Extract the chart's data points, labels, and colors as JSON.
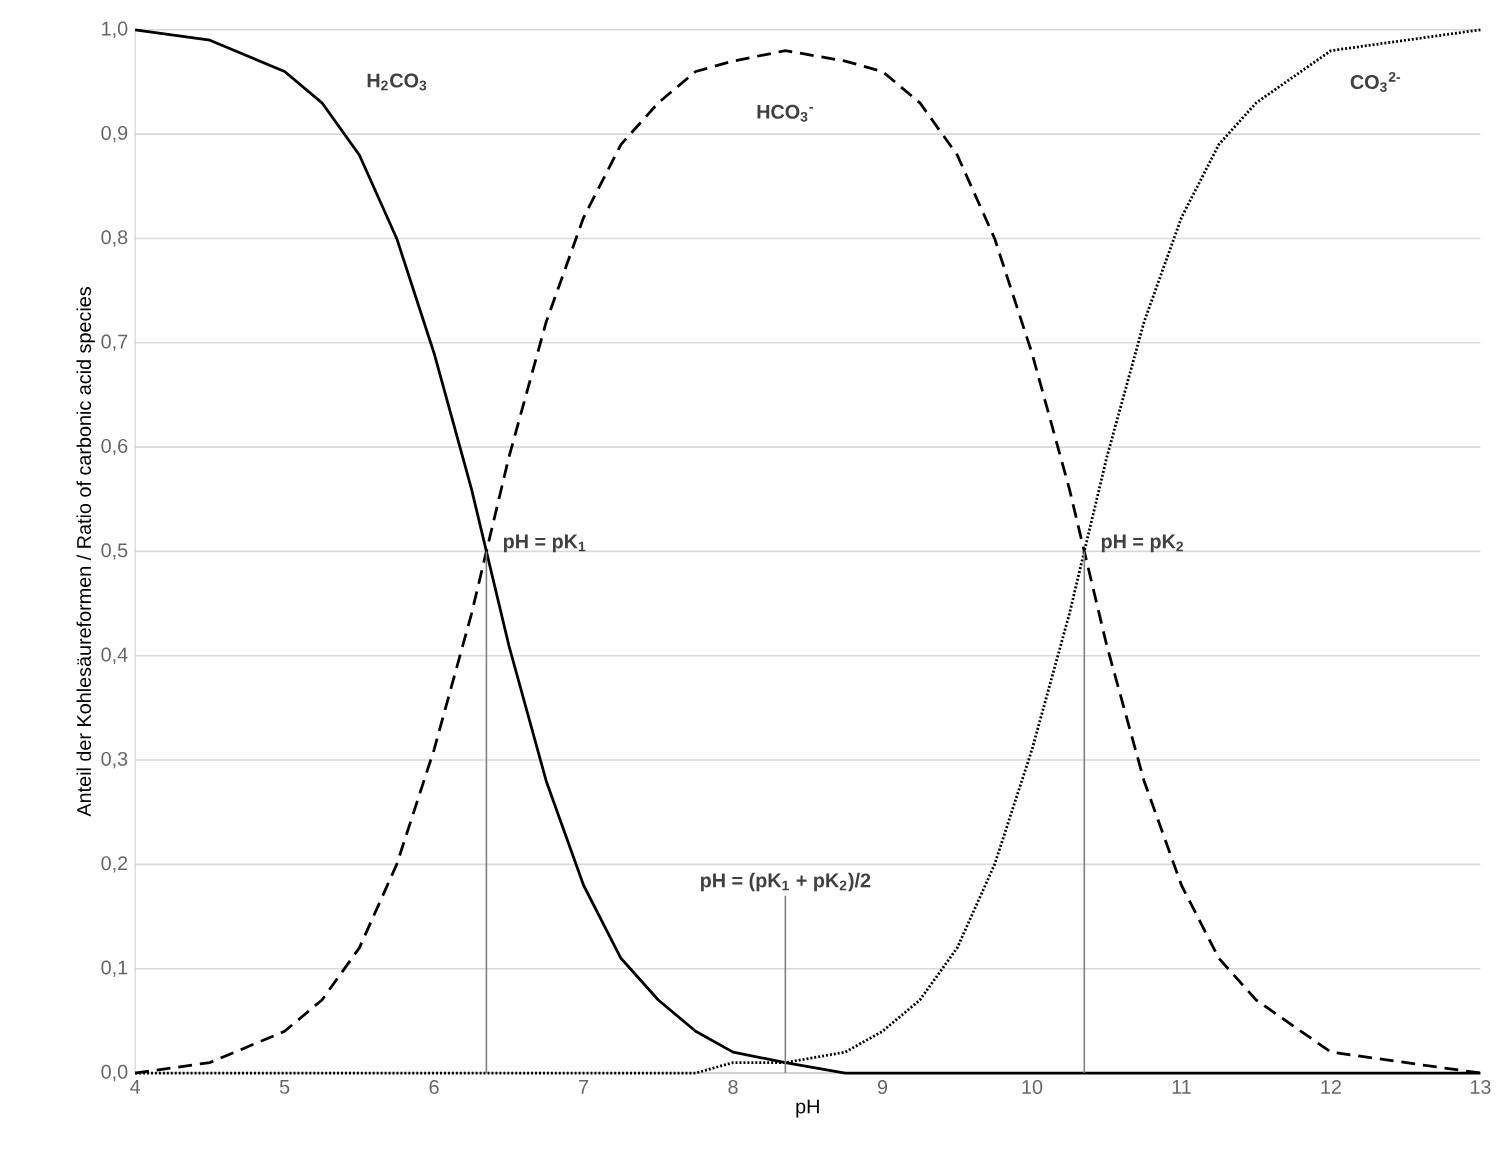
{
  "chart_data": {
    "type": "line",
    "xlabel": "pH",
    "ylabel": "Anteil der Kohlesäureformen / Ratio of carbonic acid species",
    "x": [
      4,
      4.5,
      5,
      5.25,
      5.5,
      5.75,
      6,
      6.25,
      6.35,
      6.5,
      6.75,
      7,
      7.25,
      7.5,
      7.75,
      8,
      8.35,
      8.75,
      9,
      9.25,
      9.5,
      9.75,
      10,
      10.25,
      10.35,
      10.5,
      10.75,
      11,
      11.25,
      11.5,
      12,
      12.5,
      13
    ],
    "series": [
      {
        "name": "H$_{2}$CO$_{3}$",
        "color": "#000000",
        "line_style": "solid",
        "values": [
          1.0,
          0.99,
          0.96,
          0.93,
          0.88,
          0.8,
          0.69,
          0.56,
          0.5,
          0.41,
          0.28,
          0.18,
          0.11,
          0.07,
          0.04,
          0.02,
          0.01,
          0.0,
          0.0,
          0.0,
          0.0,
          0.0,
          0.0,
          0.0,
          0.0,
          0.0,
          0.0,
          0.0,
          0.0,
          0.0,
          0.0,
          0.0,
          0.0
        ]
      },
      {
        "name": "HCO$_{3}$$^{-}$",
        "color": "#000000",
        "line_style": "dashed",
        "values": [
          0.0,
          0.01,
          0.04,
          0.07,
          0.12,
          0.2,
          0.31,
          0.44,
          0.5,
          0.59,
          0.72,
          0.82,
          0.89,
          0.93,
          0.96,
          0.97,
          0.98,
          0.97,
          0.96,
          0.93,
          0.88,
          0.8,
          0.69,
          0.56,
          0.5,
          0.41,
          0.28,
          0.18,
          0.11,
          0.07,
          0.02,
          0.01,
          0.0
        ]
      },
      {
        "name": "CO$_{3}$$^{2-}$",
        "color": "#000000",
        "line_style": "dotted",
        "values": [
          0.0,
          0.0,
          0.0,
          0.0,
          0.0,
          0.0,
          0.0,
          0.0,
          0.0,
          0.0,
          0.0,
          0.0,
          0.0,
          0.0,
          0.0,
          0.01,
          0.01,
          0.02,
          0.04,
          0.07,
          0.12,
          0.2,
          0.31,
          0.44,
          0.5,
          0.59,
          0.72,
          0.82,
          0.89,
          0.93,
          0.98,
          0.99,
          1.0
        ]
      }
    ],
    "annotations": [
      {
        "text": "pH = pK$_{1}$",
        "x": 6.35,
        "y": 0.5
      },
      {
        "text": "pH = (pK$_{1}$ + pK$_{2}$)/2",
        "x": 8.35,
        "y": 0.01
      },
      {
        "text": "pH = pK$_{2}$",
        "x": 10.35,
        "y": 0.5
      }
    ],
    "xlim": [
      4,
      13
    ],
    "ylim": [
      0,
      1
    ],
    "xticks": [
      4,
      5,
      6,
      7,
      8,
      9,
      10,
      11,
      12,
      13
    ],
    "yticks": [
      {
        "value": 0,
        "label": "0,0"
      },
      {
        "value": 0.1,
        "label": "0,1"
      },
      {
        "value": 0.2,
        "label": "0,2"
      },
      {
        "value": 0.3,
        "label": "0,3"
      },
      {
        "value": 0.4,
        "label": "0,4"
      },
      {
        "value": 0.5,
        "label": "0,5"
      },
      {
        "value": 0.6,
        "label": "0,6"
      },
      {
        "value": 0.7,
        "label": "0,7"
      },
      {
        "value": 0.8,
        "label": "0,8"
      },
      {
        "value": 0.9,
        "label": "0,9"
      },
      {
        "value": 1,
        "label": "1,0"
      }
    ],
    "grid": "y",
    "legend": false
  }
}
